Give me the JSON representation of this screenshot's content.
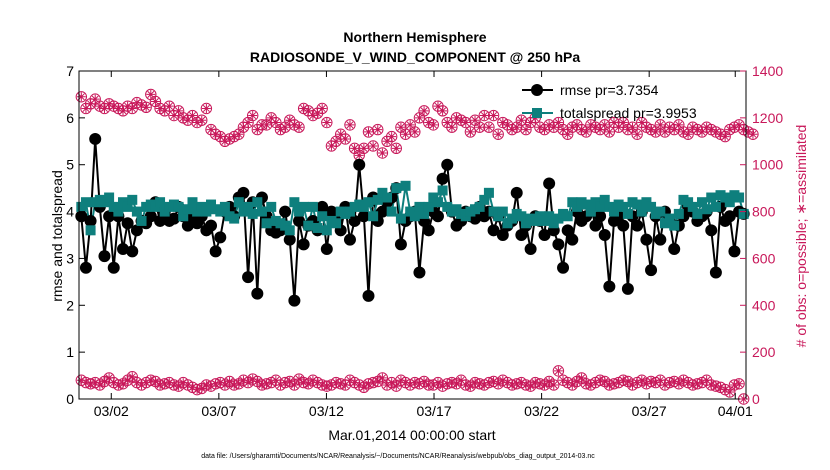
{
  "chart_data": {
    "type": "line",
    "title": "Northern Hemisphere",
    "subtitle": "RADIOSONDE_V_WIND_COMPONENT @ 250 hPa",
    "xlabel": "Mar.01,2014 00:00:00 start",
    "ylabel": "rmse and totalspread",
    "ylabel_right": "# of obs: o=possible; ∗=assimilated",
    "footnote": "data file: /Users/gharamti/Documents/NCAR/Reanalysis/~/Documents/NCAR/Reanalysis/webpub/obs_diag_output_2014-03.nc",
    "xlim": [
      0.5,
      31.5
    ],
    "ylim": [
      0,
      7
    ],
    "ylim_right": [
      0,
      1400
    ],
    "x_ticks": [
      {
        "x": 2,
        "label": "03/02"
      },
      {
        "x": 7,
        "label": "03/07"
      },
      {
        "x": 12,
        "label": "03/12"
      },
      {
        "x": 17,
        "label": "03/17"
      },
      {
        "x": 22,
        "label": "03/22"
      },
      {
        "x": 27,
        "label": "03/27"
      },
      {
        "x": 31,
        "label": "04/01"
      }
    ],
    "y_ticks": [
      "0",
      "1",
      "2",
      "3",
      "4",
      "5",
      "6",
      "7"
    ],
    "y_ticks_right": [
      "0",
      "200",
      "400",
      "600",
      "800",
      "1000",
      "1200",
      "1400"
    ],
    "legend": [
      {
        "label": "rmse pr=3.7354",
        "color": "#000000"
      },
      {
        "label": "totalspread pr=3.9953",
        "color": "#0e7f7d"
      }
    ],
    "colors": {
      "rmse": "#000000",
      "totalspread": "#0e7f7d",
      "obs": "#c8185a"
    },
    "rmse": [
      3.9,
      2.8,
      3.8,
      5.55,
      4.1,
      3.05,
      3.9,
      2.8,
      3.9,
      3.2,
      3.75,
      3.15,
      3.6,
      3.8,
      3.75,
      3.9,
      4.2,
      3.8,
      4.0,
      3.8,
      3.85,
      4.1,
      3.9,
      3.7,
      3.9,
      3.75,
      3.9,
      3.6,
      3.7,
      3.15,
      3.45,
      4.0,
      4.1,
      3.9,
      4.3,
      4.4,
      2.6,
      4.2,
      2.25,
      4.3,
      3.9,
      3.6,
      3.55,
      3.6,
      4.0,
      3.4,
      2.1,
      3.8,
      3.3,
      3.7,
      3.8,
      3.6,
      4.1,
      3.2,
      4.0,
      3.8,
      3.6,
      4.1,
      3.4,
      3.8,
      5.0,
      3.9,
      2.2,
      4.3,
      3.8,
      4.0,
      4.2,
      4.3,
      4.5,
      3.3,
      3.8,
      3.9,
      4.0,
      2.7,
      3.8,
      3.6,
      4.0,
      3.9,
      4.7,
      5.0,
      4.0,
      3.7,
      3.8,
      4.0,
      3.9,
      3.85,
      4.1,
      3.9,
      4.0,
      3.6,
      3.9,
      3.5,
      3.7,
      3.8,
      4.4,
      3.5,
      3.7,
      3.2,
      3.9,
      3.8,
      3.5,
      4.6,
      3.6,
      3.3,
      2.8,
      3.6,
      3.4,
      4.0,
      3.8,
      3.9,
      4.1,
      3.7,
      3.9,
      3.5,
      2.4,
      3.8,
      3.9,
      3.7,
      2.35,
      3.9,
      3.7,
      4.0,
      3.4,
      2.75,
      3.9,
      3.4,
      4.0,
      3.8,
      3.2,
      3.7,
      3.9,
      4.1,
      4.0,
      3.8,
      3.9,
      4.0,
      3.6,
      2.7,
      4.1,
      3.8,
      3.9,
      3.15,
      4.0,
      3.95
    ],
    "totalspread": [
      4.1,
      4.2,
      3.6,
      4.2,
      4.25,
      4.2,
      4.3,
      4.1,
      4.0,
      4.2,
      4.1,
      4.25,
      4.0,
      3.8,
      4.1,
      4.15,
      4.1,
      4.2,
      4.0,
      4.1,
      4.15,
      4.1,
      3.9,
      4.05,
      4.2,
      4.0,
      4.1,
      4.0,
      4.15,
      4.05,
      4.0,
      4.1,
      3.9,
      3.85,
      4.2,
      4.0,
      4.1,
      3.95,
      4.2,
      4.0,
      3.75,
      4.1,
      3.8,
      3.75,
      3.7,
      3.6,
      4.2,
      4.0,
      4.1,
      3.7,
      4.1,
      3.65,
      3.9,
      3.6,
      3.8,
      3.75,
      4.0,
      3.95,
      4.0,
      4.1,
      4.15,
      4.1,
      4.2,
      3.9,
      4.25,
      4.4,
      4.3,
      4.0,
      4.5,
      3.85,
      4.55,
      4.0,
      3.9,
      4.1,
      3.95,
      4.1,
      4.3,
      4.2,
      4.45,
      4.1,
      4.0,
      4.05,
      3.95,
      3.9,
      4.0,
      4.05,
      4.1,
      4.25,
      4.4,
      4.0,
      3.9,
      4.0,
      3.75,
      3.85,
      3.95,
      3.9,
      3.75,
      3.85,
      3.8,
      3.9,
      3.8,
      3.9,
      3.75,
      3.85,
      3.95,
      3.9,
      4.2,
      4.1,
      4.2,
      4.15,
      4.0,
      4.2,
      4.1,
      4.25,
      4.1,
      4.0,
      4.15,
      4.1,
      3.95,
      4.2,
      4.15,
      4.0,
      4.2,
      4.1,
      3.95,
      4.0,
      3.75,
      3.85,
      3.7,
      3.95,
      4.25,
      4.2,
      4.1,
      3.95,
      4.2,
      4.05,
      4.3,
      4.1,
      4.35,
      4.3,
      4.2,
      4.35,
      4.3,
      3.95
    ],
    "obs_possible": [
      1290,
      1240,
      1260,
      1280,
      1250,
      1240,
      1260,
      1250,
      1240,
      1230,
      1250,
      1240,
      1265,
      1255,
      1245,
      1300,
      1270,
      1240,
      1230,
      1250,
      1210,
      1230,
      1200,
      1190,
      1210,
      1180,
      1190,
      1240,
      1150,
      1130,
      1120,
      1100,
      1110,
      1120,
      1130,
      1160,
      1180,
      1210,
      1150,
      1170,
      1170,
      1200,
      1180,
      1150,
      1160,
      1190,
      1170,
      1160,
      1240,
      1230,
      1210,
      1220,
      1240,
      1180,
      1080,
      1100,
      1130,
      1110,
      1170,
      1070,
      1040,
      1070,
      1140,
      1080,
      1150,
      1050,
      1100,
      1120,
      1070,
      1160,
      1130,
      1170,
      1140,
      1200,
      1230,
      1180,
      1170,
      1250,
      1230,
      1180,
      1160,
      1200,
      1190,
      1180,
      1140,
      1190,
      1160,
      1210,
      1160,
      1210,
      1130,
      1180,
      1170,
      1150,
      1160,
      1190,
      1150,
      1180,
      1200,
      1160,
      1150,
      1170,
      1160,
      1180,
      1150,
      1130,
      1160,
      1170,
      1150,
      1140,
      1170,
      1160,
      1150,
      1170,
      1140,
      1180,
      1160,
      1180,
      1150,
      1160,
      1130,
      1180,
      1160,
      1150,
      1140,
      1170,
      1140,
      1160,
      1150,
      1170,
      1140,
      1130,
      1160,
      1150,
      1140,
      1160,
      1150,
      1140,
      1130,
      1120,
      1150,
      1160,
      1170,
      1150,
      1140,
      1130
    ],
    "obs_assimilated": [
      80,
      70,
      65,
      70,
      60,
      75,
      90,
      70,
      60,
      65,
      80,
      95,
      70,
      60,
      70,
      80,
      75,
      60,
      65,
      70,
      60,
      55,
      70,
      60,
      50,
      40,
      45,
      60,
      55,
      65,
      70,
      60,
      75,
      60,
      65,
      80,
      70,
      85,
      75,
      60,
      65,
      70,
      80,
      60,
      70,
      75,
      60,
      85,
      70,
      65,
      80,
      70,
      60,
      55,
      60,
      70,
      65,
      60,
      80,
      70,
      60,
      50,
      65,
      70,
      75,
      90,
      60,
      70,
      55,
      80,
      70,
      60,
      70,
      65,
      75,
      60,
      60,
      70,
      55,
      65,
      70,
      65,
      80,
      60,
      55,
      70,
      65,
      60,
      70,
      75,
      65,
      80,
      70,
      60,
      65,
      70,
      60,
      55,
      70,
      65,
      60,
      75,
      60,
      120,
      80,
      70,
      60,
      75,
      90,
      65,
      60,
      70,
      80,
      75,
      60,
      65,
      70,
      80,
      75,
      60,
      70,
      80,
      65,
      75,
      70,
      80,
      60,
      70,
      75,
      65,
      80,
      70,
      60,
      65,
      70,
      80,
      60,
      55,
      50,
      40,
      30,
      60,
      65,
      0
    ]
  }
}
